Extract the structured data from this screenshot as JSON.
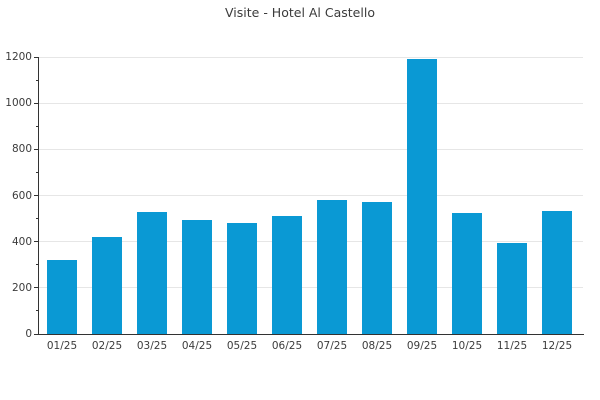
{
  "chart_data": {
    "type": "bar",
    "title": "Visite - Hotel Al Castello",
    "categories": [
      "01/25",
      "02/25",
      "03/25",
      "04/25",
      "05/25",
      "06/25",
      "07/25",
      "08/25",
      "09/25",
      "10/25",
      "11/25",
      "12/25"
    ],
    "values": [
      320,
      420,
      530,
      495,
      480,
      510,
      580,
      570,
      1190,
      525,
      395,
      535
    ],
    "xlabel": "",
    "ylabel": "",
    "ylim": [
      0,
      1200
    ],
    "yticks": [
      0,
      200,
      400,
      600,
      800,
      1000,
      1200
    ],
    "minor_ytick_step": 100,
    "grid": true,
    "legend": "none"
  },
  "colors": {
    "bar": "#0a99d4",
    "grid": "#e6e6e6",
    "axis": "#333333",
    "text": "#3c3c3c"
  }
}
